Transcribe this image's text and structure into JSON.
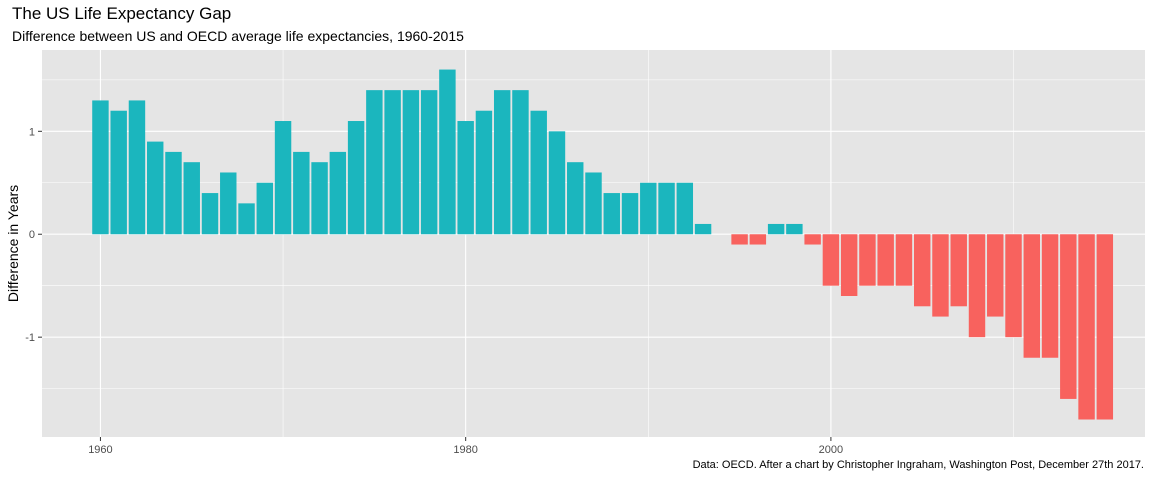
{
  "chart_data": {
    "type": "bar",
    "title": "The US Life Expectancy Gap",
    "subtitle": "Difference between US and OECD average life expectancies, 1960-2015",
    "xlabel": "",
    "ylabel": "Difference in Years",
    "caption": "Data: OECD. After a chart by Christopher Ingraham, Washington Post, December 27th 2017.",
    "xlim": [
      1956.8,
      2017.2
    ],
    "ylim": [
      -1.97,
      1.79
    ],
    "x_ticks": [
      1960,
      1980,
      2000
    ],
    "y_ticks": [
      -1,
      0,
      1
    ],
    "grid": true,
    "colors": {
      "positive": "#1bb6be",
      "negative": "#f8625e",
      "panel": "#e5e5e5",
      "grid": "#ffffff"
    },
    "x": [
      1960,
      1961,
      1962,
      1963,
      1964,
      1965,
      1966,
      1967,
      1968,
      1969,
      1970,
      1971,
      1972,
      1973,
      1974,
      1975,
      1976,
      1977,
      1978,
      1979,
      1980,
      1981,
      1982,
      1983,
      1984,
      1985,
      1986,
      1987,
      1988,
      1989,
      1990,
      1991,
      1992,
      1993,
      1994,
      1995,
      1996,
      1997,
      1998,
      1999,
      2000,
      2001,
      2002,
      2003,
      2004,
      2005,
      2006,
      2007,
      2008,
      2009,
      2010,
      2011,
      2012,
      2013,
      2014,
      2015
    ],
    "values": [
      1.3,
      1.2,
      1.3,
      0.9,
      0.8,
      0.7,
      0.4,
      0.6,
      0.3,
      0.5,
      1.1,
      0.8,
      0.7,
      0.8,
      1.1,
      1.4,
      1.4,
      1.4,
      1.4,
      1.6,
      1.1,
      1.2,
      1.4,
      1.4,
      1.2,
      1.0,
      0.7,
      0.6,
      0.4,
      0.4,
      0.5,
      0.5,
      0.5,
      0.1,
      0.0,
      -0.1,
      -0.1,
      0.1,
      0.1,
      -0.1,
      -0.5,
      -0.6,
      -0.5,
      -0.5,
      -0.5,
      -0.7,
      -0.8,
      -0.7,
      -1.0,
      -0.8,
      -1.0,
      -1.2,
      -1.2,
      -1.6,
      -1.8,
      -1.8
    ]
  }
}
